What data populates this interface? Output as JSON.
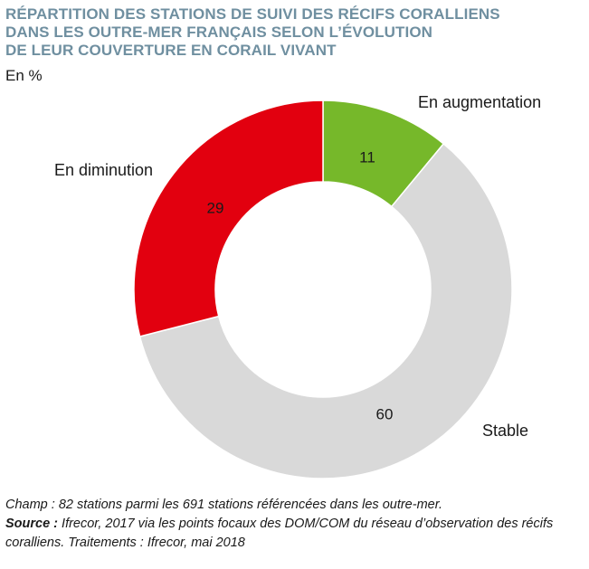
{
  "title_lines": [
    "RÉPARTITION DES STATIONS DE SUIVI DES RÉCIFS CORALLIENS",
    "DANS LES OUTRE-MER FRANÇAIS SELON L’ÉVOLUTION",
    "DE LEUR COUVERTURE EN CORAIL VIVANT"
  ],
  "unit": "En %",
  "chart_data": {
    "type": "pie",
    "donut": true,
    "slices": [
      {
        "label": "En augmentation",
        "value": 11,
        "color": "#76b82a"
      },
      {
        "label": "Stable",
        "value": 60,
        "color": "#d9d9d9"
      },
      {
        "label": "En diminution",
        "value": 29,
        "color": "#e2000f"
      }
    ]
  },
  "footnote": {
    "champ": "Champ : 82 stations parmi les 691 stations référencées dans les outre-mer.",
    "source_label": "Source :",
    "source_text": " Ifrecor, 2017 via les points focaux des DOM/COM du réseau d’observation des récifs coralliens. Traitements : Ifrecor, mai 2018"
  }
}
